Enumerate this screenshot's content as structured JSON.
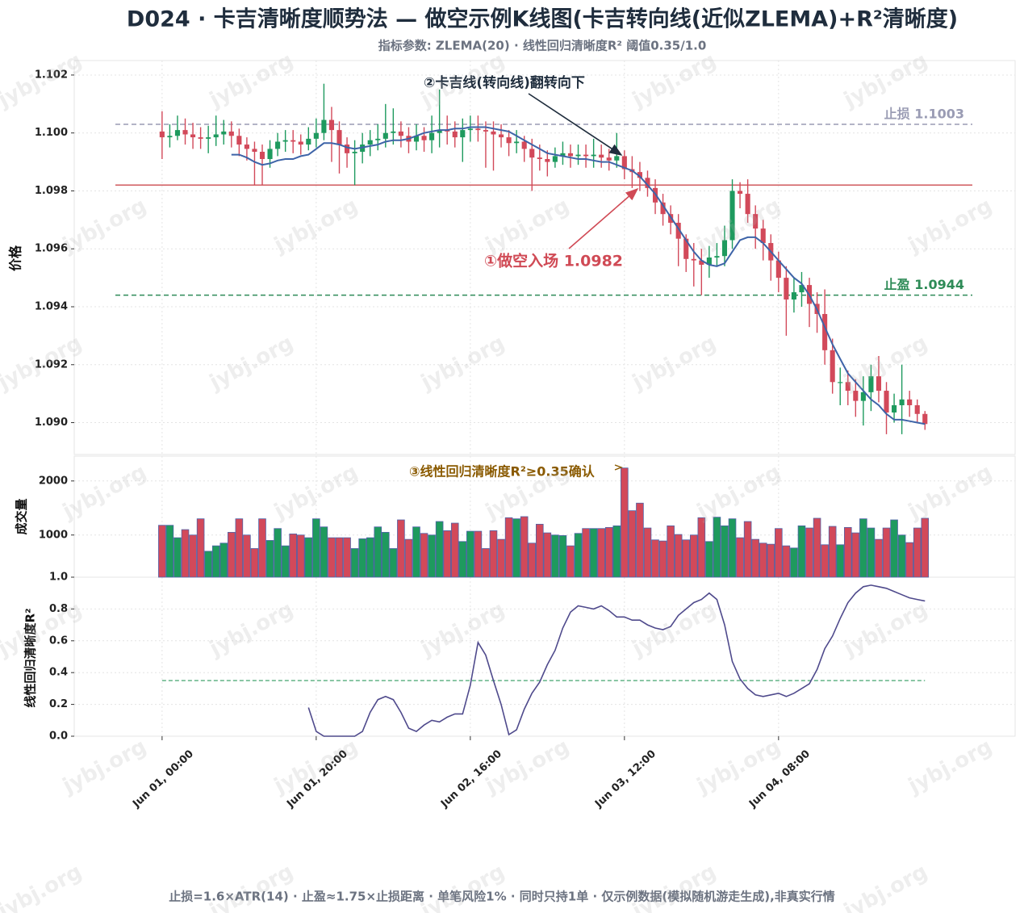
{
  "chart_data": {
    "type": "candlestick",
    "title": "D024 · 卡吉清晰度顺势法 — 做空示例K线图(卡吉转向线(近似ZLEMA)+R²清晰度)",
    "subtitle": "指标参数: ZLEMA(20) · 线性回归清晰度R² 阈值0.35/1.0",
    "footer": "止损=1.6×ATR(14) · 止盈≈1.75×止损距离 · 单笔风险1% · 同时只持1单 · 仅示例数据(模拟随机游走生成),非真实行情",
    "watermark": "jybj.org",
    "ylabel": "价格",
    "up_color": "#1e9a5e",
    "down_color": "#d2495a",
    "x": [
      "Jun 01, 00:00",
      "Jun 01, 01:00",
      "Jun 01, 02:00",
      "Jun 01, 03:00",
      "Jun 01, 04:00",
      "Jun 01, 05:00",
      "Jun 01, 06:00",
      "Jun 01, 07:00",
      "Jun 01, 08:00",
      "Jun 01, 09:00",
      "Jun 01, 10:00",
      "Jun 01, 11:00",
      "Jun 01, 12:00",
      "Jun 01, 13:00",
      "Jun 01, 14:00",
      "Jun 01, 15:00",
      "Jun 01, 16:00",
      "Jun 01, 17:00",
      "Jun 01, 18:00",
      "Jun 01, 19:00",
      "Jun 01, 20:00",
      "Jun 01, 21:00",
      "Jun 01, 22:00",
      "Jun 01, 23:00",
      "Jun 02, 00:00",
      "Jun 02, 01:00",
      "Jun 02, 02:00",
      "Jun 02, 03:00",
      "Jun 02, 04:00",
      "Jun 02, 05:00",
      "Jun 02, 06:00",
      "Jun 02, 07:00",
      "Jun 02, 08:00",
      "Jun 02, 09:00",
      "Jun 02, 10:00",
      "Jun 02, 11:00",
      "Jun 02, 12:00",
      "Jun 02, 13:00",
      "Jun 02, 14:00",
      "Jun 02, 15:00",
      "Jun 02, 16:00",
      "Jun 02, 17:00",
      "Jun 02, 18:00",
      "Jun 02, 19:00",
      "Jun 02, 20:00",
      "Jun 02, 21:00",
      "Jun 02, 22:00",
      "Jun 02, 23:00",
      "Jun 03, 00:00",
      "Jun 03, 01:00",
      "Jun 03, 02:00",
      "Jun 03, 03:00",
      "Jun 03, 04:00",
      "Jun 03, 05:00",
      "Jun 03, 06:00",
      "Jun 03, 07:00",
      "Jun 03, 08:00",
      "Jun 03, 09:00",
      "Jun 03, 10:00",
      "Jun 03, 11:00",
      "Jun 03, 12:00",
      "Jun 03, 13:00",
      "Jun 03, 14:00",
      "Jun 03, 15:00",
      "Jun 03, 16:00",
      "Jun 03, 17:00",
      "Jun 03, 18:00",
      "Jun 03, 19:00",
      "Jun 03, 20:00",
      "Jun 03, 21:00",
      "Jun 03, 22:00",
      "Jun 03, 23:00",
      "Jun 04, 00:00",
      "Jun 04, 01:00",
      "Jun 04, 02:00",
      "Jun 04, 03:00",
      "Jun 04, 04:00",
      "Jun 04, 05:00",
      "Jun 04, 06:00",
      "Jun 04, 07:00",
      "Jun 04, 08:00",
      "Jun 04, 09:00",
      "Jun 04, 10:00",
      "Jun 04, 11:00",
      "Jun 04, 12:00",
      "Jun 04, 13:00",
      "Jun 04, 14:00",
      "Jun 04, 15:00",
      "Jun 04, 16:00",
      "Jun 04, 17:00",
      "Jun 04, 18:00",
      "Jun 04, 19:00",
      "Jun 04, 20:00",
      "Jun 04, 21:00",
      "Jun 04, 22:00",
      "Jun 04, 23:00",
      "Jun 05, 00:00",
      "Jun 05, 01:00",
      "Jun 05, 02:00",
      "Jun 05, 03:00"
    ],
    "xlim": [
      -11.4,
      110.7
    ],
    "xticks": [
      {
        "value": 0,
        "label": "Jun 01, 00:00"
      },
      {
        "value": 20,
        "label": "Jun 01, 20:00"
      },
      {
        "value": 40,
        "label": "Jun 02, 16:00"
      },
      {
        "value": 60,
        "label": "Jun 03, 12:00"
      },
      {
        "value": 80,
        "label": "Jun 04, 08:00"
      }
    ],
    "open": [
      1.10005,
      1.09985,
      1.0999,
      1.1001,
      1.09995,
      1.09985,
      1.0998,
      1.09985,
      1.09995,
      1.10005,
      1.0999,
      1.0996,
      1.09945,
      1.09935,
      1.0991,
      1.09945,
      1.0997,
      1.09975,
      1.0997,
      1.0996,
      1.0998,
      1.1,
      1.10045,
      1.1001,
      1.0996,
      1.0993,
      1.09935,
      1.0996,
      1.09975,
      1.0998,
      1.1,
      1.10005,
      1.0999,
      1.0997,
      1.0999,
      1.09975,
      1.1,
      1.1001,
      1.10005,
      1.09985,
      1.1001,
      1.10015,
      1.1001,
      1.10005,
      1.09995,
      1.09985,
      1.09965,
      1.0997,
      1.09945,
      1.09915,
      1.0991,
      1.099,
      1.0992,
      1.0993,
      1.0992,
      1.09925,
      1.0992,
      1.09925,
      1.09915,
      1.09905,
      1.0992,
      1.09875,
      1.09865,
      1.09845,
      1.0981,
      1.0976,
      1.0972,
      1.0969,
      1.09635,
      1.09565,
      1.0956,
      1.09545,
      1.0957,
      1.09575,
      1.0963,
      1.098,
      1.0979,
      1.0972,
      1.0967,
      1.0962,
      1.0956,
      1.095,
      1.09425,
      1.0945,
      1.09475,
      1.0941,
      1.09375,
      1.0925,
      1.0914,
      1.0914,
      1.0911,
      1.09075,
      1.09105,
      1.0916,
      1.0911,
      1.09035,
      1.0906,
      1.0908,
      1.0906,
      1.0903
    ],
    "high": [
      1.10075,
      1.1003,
      1.1006,
      1.1005,
      1.10035,
      1.1002,
      1.10025,
      1.1006,
      1.10045,
      1.1004,
      1.10015,
      1.09985,
      1.0997,
      1.0996,
      1.09975,
      1.1,
      1.1001,
      1.1001,
      1.09995,
      1.1002,
      1.1005,
      1.1017,
      1.1009,
      1.1004,
      1.09985,
      1.09975,
      1.1,
      1.1001,
      1.1003,
      1.101,
      1.10085,
      1.1004,
      1.1002,
      1.1003,
      1.1002,
      1.1006,
      1.1015,
      1.1006,
      1.1004,
      1.1005,
      1.1006,
      1.1006,
      1.1004,
      1.1004,
      1.1003,
      1.1001,
      1.1001,
      1.0999,
      1.0998,
      1.0996,
      1.0994,
      1.0995,
      1.0997,
      1.0996,
      1.0996,
      1.0996,
      1.0998,
      1.0996,
      1.09945,
      1.1,
      1.0994,
      1.0992,
      1.099,
      1.0987,
      1.0984,
      1.0979,
      1.0975,
      1.0972,
      1.0965,
      1.0962,
      1.096,
      1.0961,
      1.0962,
      1.0968,
      1.0984,
      1.0983,
      1.0984,
      1.0975,
      1.097,
      1.0965,
      1.0959,
      1.0954,
      1.095,
      1.0952,
      1.095,
      1.0945,
      1.0946,
      1.0929,
      1.0919,
      1.0918,
      1.0915,
      1.0916,
      1.092,
      1.0923,
      1.0914,
      1.091,
      1.092,
      1.0911,
      1.0908,
      1.0904
    ],
    "low": [
      1.0991,
      1.0995,
      1.09975,
      1.0996,
      1.09945,
      1.09945,
      1.0993,
      1.09955,
      1.0996,
      1.0995,
      1.0992,
      1.09905,
      1.0982,
      1.0982,
      1.0988,
      1.0992,
      1.09935,
      1.0993,
      1.09925,
      1.0994,
      1.0995,
      1.09975,
      1.099,
      1.0986,
      1.0988,
      1.0982,
      1.09895,
      1.0992,
      1.0994,
      1.0995,
      1.0996,
      1.0995,
      1.0993,
      1.0994,
      1.09935,
      1.0993,
      1.0995,
      1.0996,
      1.0995,
      1.099,
      1.0997,
      1.0997,
      1.0988,
      1.0987,
      1.0995,
      1.0992,
      1.0993,
      1.099,
      1.098,
      1.0987,
      1.0985,
      1.0988,
      1.0989,
      1.0988,
      1.0989,
      1.0988,
      1.0988,
      1.0988,
      1.0987,
      1.0988,
      1.0984,
      1.0981,
      1.098,
      1.0978,
      1.0972,
      1.0968,
      1.0965,
      1.0954,
      1.0952,
      1.0947,
      1.0944,
      1.095,
      1.0954,
      1.0954,
      1.096,
      1.0974,
      1.0969,
      1.096,
      1.0956,
      1.0949,
      1.0945,
      1.093,
      1.0938,
      1.094,
      1.0933,
      1.0931,
      1.092,
      1.091,
      1.0906,
      1.0906,
      1.0902,
      1.0899,
      1.0904,
      1.0907,
      1.0896,
      1.09,
      1.0896,
      1.0902,
      1.09,
      1.08975
    ],
    "close": [
      1.09985,
      1.0999,
      1.1001,
      1.09995,
      1.09985,
      1.0998,
      1.09985,
      1.09995,
      1.10005,
      1.0999,
      1.0996,
      1.09945,
      1.09935,
      1.0991,
      1.09945,
      1.0997,
      1.09975,
      1.0997,
      1.0996,
      1.0998,
      1.1,
      1.10045,
      1.1001,
      1.0996,
      1.0993,
      1.09935,
      1.0996,
      1.09975,
      1.0998,
      1.1,
      1.10005,
      1.0999,
      1.0997,
      1.0999,
      1.09975,
      1.1,
      1.1001,
      1.10005,
      1.09985,
      1.1001,
      1.10015,
      1.1001,
      1.10005,
      1.09995,
      1.09985,
      1.09965,
      1.0997,
      1.09945,
      1.09915,
      1.0991,
      1.099,
      1.0992,
      1.0993,
      1.0992,
      1.09925,
      1.0992,
      1.09925,
      1.09915,
      1.09905,
      1.0992,
      1.09875,
      1.09865,
      1.09845,
      1.0981,
      1.0976,
      1.0972,
      1.0969,
      1.09635,
      1.09565,
      1.0956,
      1.09545,
      1.0957,
      1.09575,
      1.0963,
      1.098,
      1.0979,
      1.0972,
      1.0967,
      1.0962,
      1.0956,
      1.095,
      1.09425,
      1.0945,
      1.09475,
      1.0941,
      1.09375,
      1.0925,
      1.0914,
      1.0914,
      1.0911,
      1.09075,
      1.09105,
      1.0916,
      1.0911,
      1.09035,
      1.0906,
      1.0908,
      1.0906,
      1.0903,
      1.08995
    ],
    "zlema": {
      "color": "#3e64a8",
      "values": [
        null,
        null,
        null,
        null,
        null,
        null,
        null,
        null,
        null,
        1.09925,
        1.09925,
        1.09915,
        1.099,
        1.0989,
        1.09895,
        1.09905,
        1.0991,
        1.0991,
        1.0992,
        1.09925,
        1.09945,
        1.09965,
        1.09965,
        1.0996,
        1.0995,
        1.09945,
        1.0995,
        1.09955,
        1.0996,
        1.0997,
        1.09975,
        1.09975,
        1.0998,
        1.0999,
        1.1,
        1.10005,
        1.1001,
        1.1001,
        1.10015,
        1.10015,
        1.1002,
        1.1002,
        1.1002,
        1.10015,
        1.1001,
        1.10005,
        1.0999,
        1.09975,
        1.0996,
        1.09945,
        1.0993,
        1.09925,
        1.0992,
        1.09915,
        1.0991,
        1.0991,
        1.09905,
        1.099,
        1.099,
        1.0989,
        1.0988,
        1.0987,
        1.0985,
        1.0982,
        1.0979,
        1.0975,
        1.0971,
        1.0967,
        1.0963,
        1.0959,
        1.0956,
        1.09545,
        1.0954,
        1.0955,
        1.0959,
        1.0963,
        1.0964,
        1.0964,
        1.0962,
        1.0959,
        1.0956,
        1.0953,
        1.095,
        1.0948,
        1.0944,
        1.0939,
        1.0933,
        1.0927,
        1.0922,
        1.0917,
        1.0914,
        1.0911,
        1.0908,
        1.0906,
        1.0903,
        1.0901,
        1.0901,
        1.09005,
        1.09,
        1.08995
      ]
    },
    "ylim": [
      1.0889,
      1.1025
    ],
    "yticks": [
      {
        "value": 1.09,
        "label": "1.090"
      },
      1.092,
      1.094,
      1.096,
      1.098,
      {
        "value": 1.1,
        "label": "1.100"
      },
      1.102
    ],
    "grid": true,
    "levels": [
      {
        "label": "止损 1.1003",
        "value": 1.1003,
        "color": "#9a9cb4",
        "style": "dashed"
      },
      {
        "value": 1.0982,
        "color": "#d05a5e",
        "style": "solid"
      },
      {
        "label": "止盈 1.0944",
        "value": 1.0944,
        "color": "#2e8b57",
        "style": "dashed"
      }
    ],
    "annotations": [
      {
        "text": "②卡吉线(转向线)翻转向下",
        "color": "#1f2d3d"
      },
      {
        "text": "①做空入场 1.0982",
        "color": "#d04a55"
      },
      {
        "text": "③线性回归清晰度R²≥0.35确认",
        "color": "#8a5a00"
      }
    ],
    "volume": {
      "ylabel": "成交量",
      "edge_color": "#4f63a8",
      "values": [
        1180,
        1180,
        950,
        1100,
        1000,
        1300,
        700,
        800,
        850,
        1050,
        1300,
        1000,
        750,
        1300,
        900,
        1120,
        800,
        1020,
        1000,
        950,
        1300,
        1150,
        950,
        950,
        950,
        750,
        930,
        950,
        1150,
        1050,
        750,
        1280,
        920,
        1150,
        1030,
        1000,
        1250,
        1080,
        1220,
        880,
        1070,
        1070,
        750,
        1080,
        920,
        1320,
        1300,
        1340,
        850,
        1200,
        1040,
        1000,
        990,
        800,
        1030,
        1120,
        1120,
        1120,
        1140,
        1170,
        2240,
        1450,
        1590,
        1130,
        910,
        890,
        1170,
        1010,
        910,
        1000,
        1320,
        880,
        1330,
        1170,
        1300,
        950,
        1250,
        920,
        850,
        830,
        1120,
        800,
        760,
        1170,
        1130,
        1310,
        820,
        1160,
        820,
        1140,
        1040,
        1300,
        1130,
        920,
        1130,
        1280,
        1000,
        860,
        1130,
        1310
      ],
      "ylim": [
        220,
        2460
      ],
      "yticks": [
        1000,
        2000
      ]
    },
    "r2": {
      "ylabel": "线性回归清晰度R²",
      "color": "#4f4a8c",
      "threshold": 0.35,
      "threshold_color": "#2e9a5e",
      "values": [
        null,
        null,
        null,
        null,
        null,
        null,
        null,
        null,
        null,
        null,
        null,
        null,
        null,
        null,
        null,
        null,
        null,
        null,
        null,
        0.18,
        0.03,
        0,
        0,
        0,
        0,
        0,
        0.03,
        0.15,
        0.23,
        0.25,
        0.23,
        0.15,
        0.05,
        0.03,
        0.07,
        0.1,
        0.09,
        0.12,
        0.14,
        0.14,
        0.32,
        0.59,
        0.51,
        0.35,
        0.2,
        0.01,
        0.04,
        0.17,
        0.27,
        0.34,
        0.45,
        0.54,
        0.68,
        0.78,
        0.82,
        0.81,
        0.8,
        0.82,
        0.79,
        0.75,
        0.75,
        0.73,
        0.73,
        0.7,
        0.68,
        0.67,
        0.69,
        0.76,
        0.8,
        0.84,
        0.86,
        0.9,
        0.86,
        0.7,
        0.47,
        0.36,
        0.3,
        0.26,
        0.25,
        0.26,
        0.27,
        0.25,
        0.27,
        0.3,
        0.33,
        0.42,
        0.55,
        0.63,
        0.74,
        0.84,
        0.9,
        0.94,
        0.95,
        0.94,
        0.93,
        0.91,
        0.89,
        0.87,
        0.86,
        0.85
      ],
      "ylim": [
        0,
        1
      ],
      "yticks": [
        {
          "value": 0,
          "label": "0.0"
        },
        0.2,
        0.4,
        0.6,
        0.8,
        {
          "value": 1,
          "label": "1.0"
        }
      ]
    }
  }
}
